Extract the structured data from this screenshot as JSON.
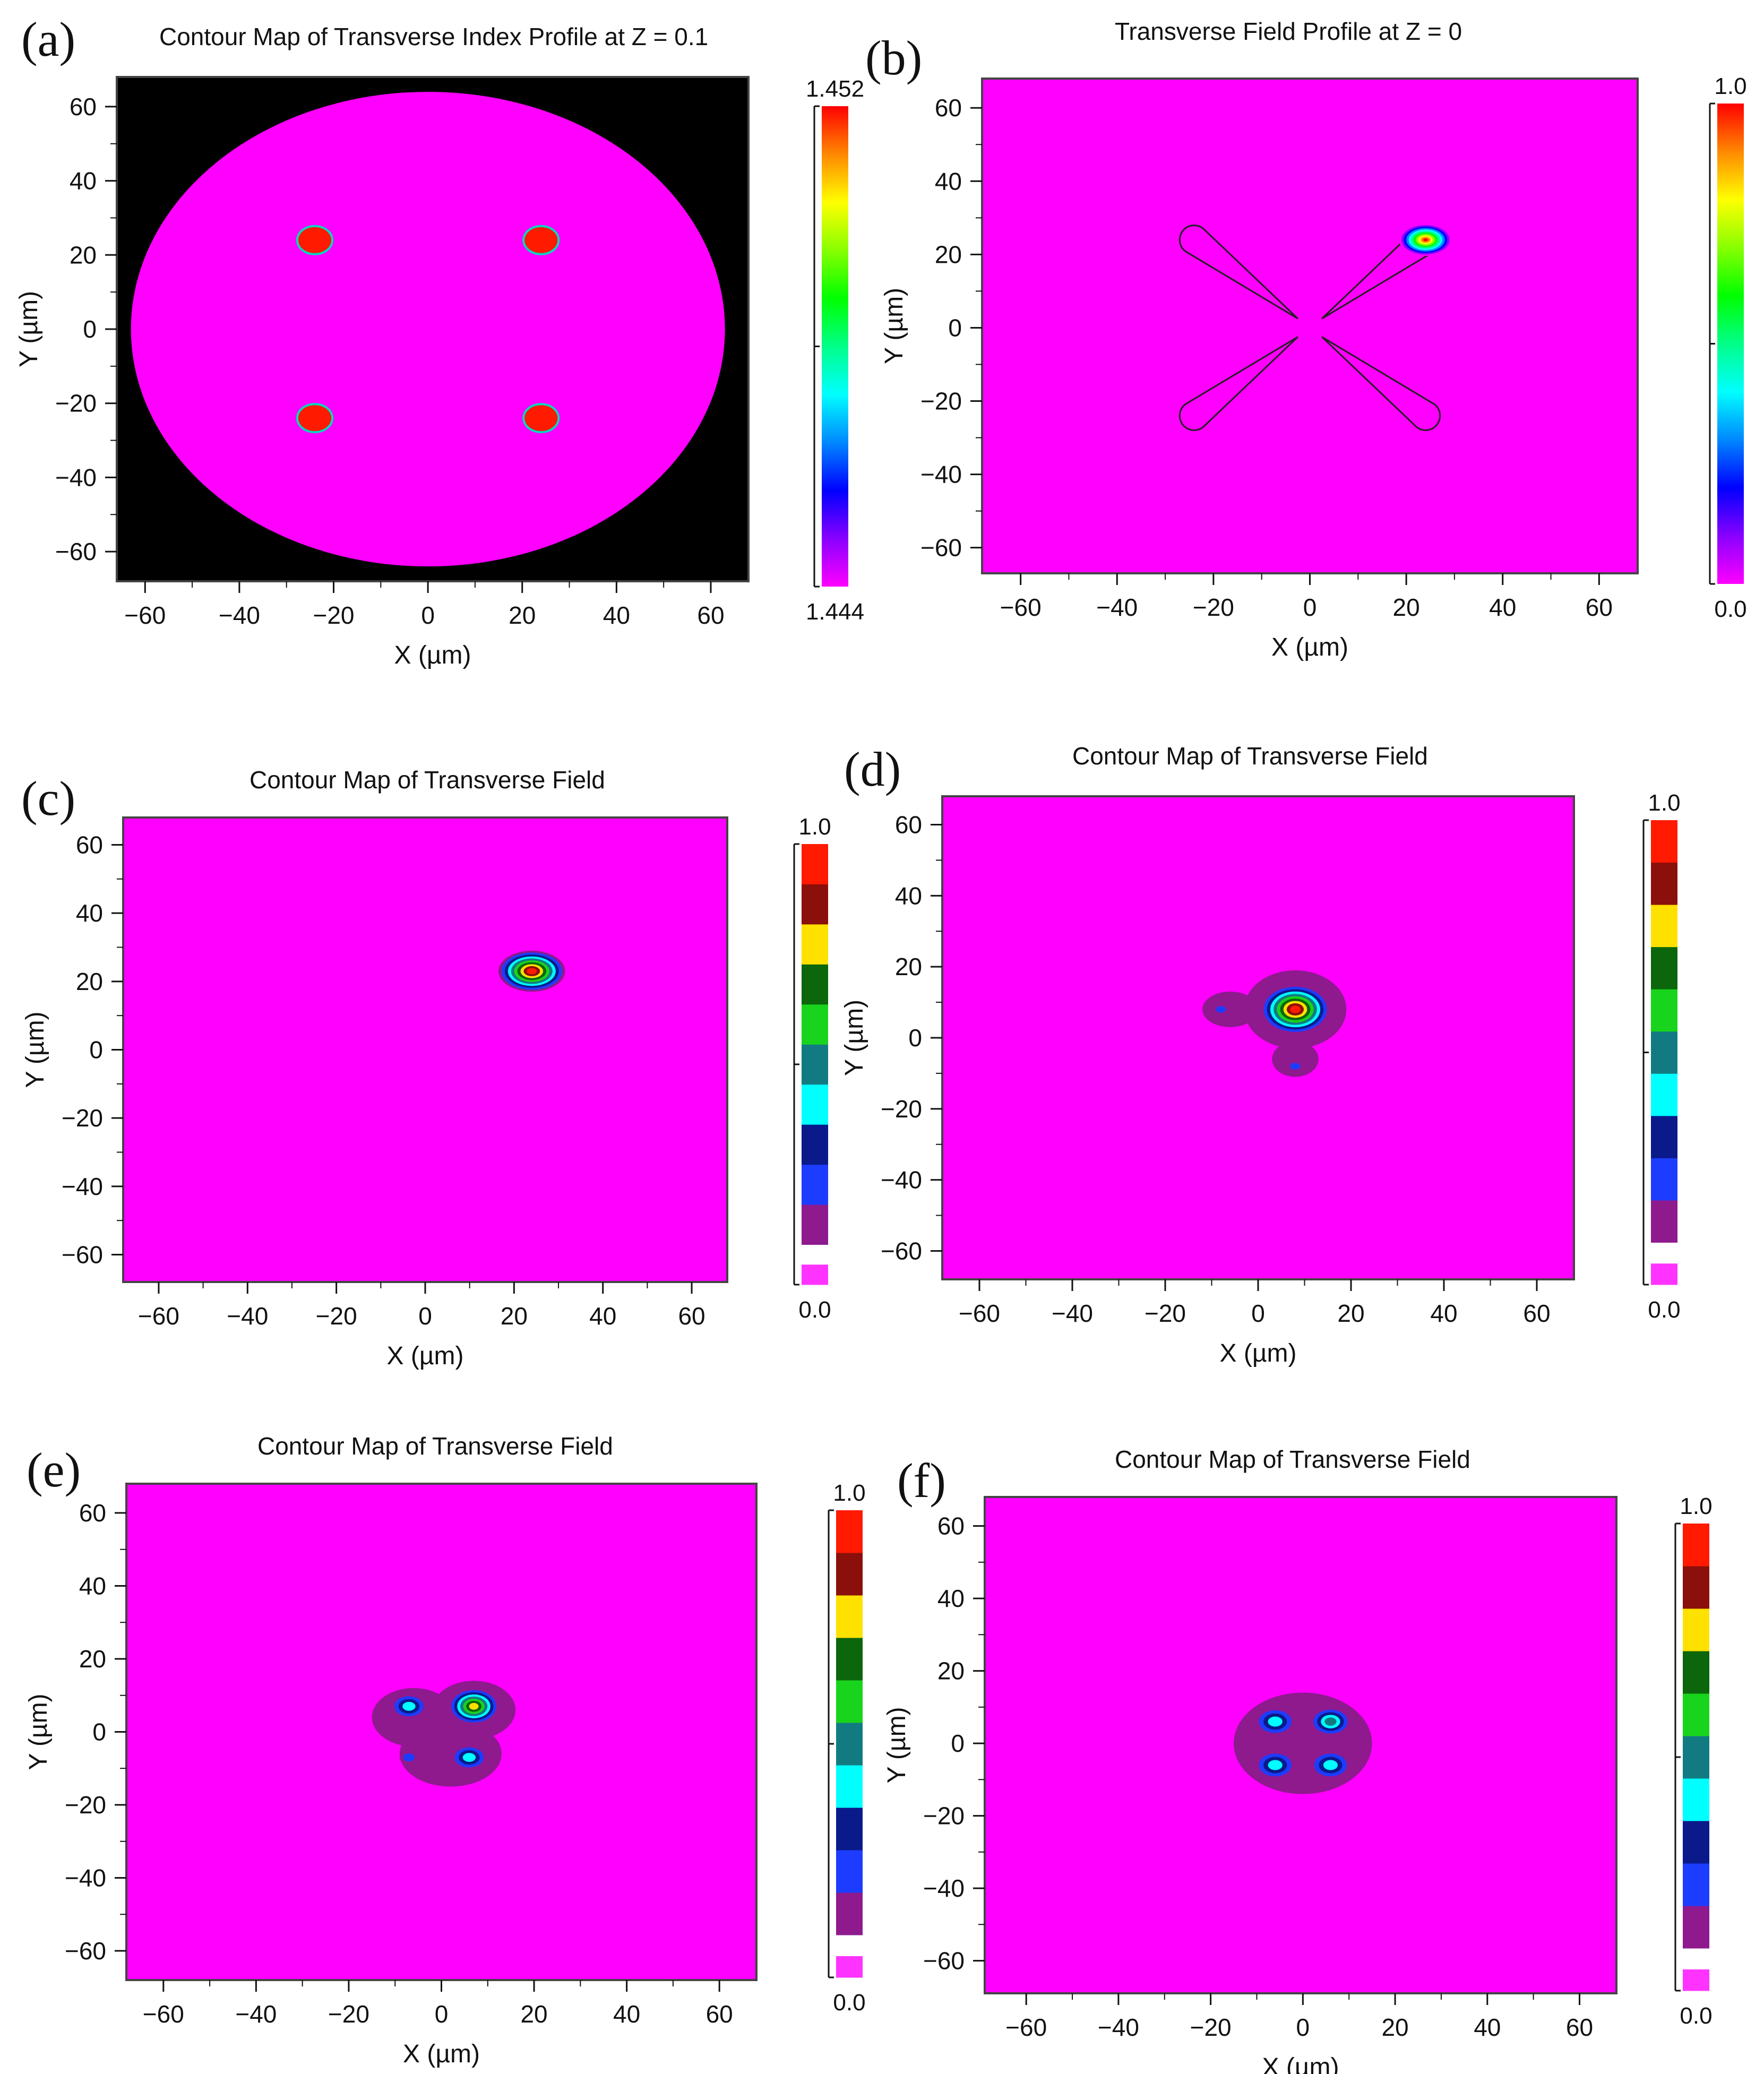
{
  "colors": {
    "background": "#ff00ff",
    "cladding_outside": "#000000",
    "core": "#ff1a00",
    "frame": "#444444",
    "contour_outline": "#222222"
  },
  "continuous_scale": [
    "#ff00ff",
    "#8800ff",
    "#0000ff",
    "#0088ff",
    "#00ffff",
    "#00ff88",
    "#00ff00",
    "#88ff00",
    "#ffff00",
    "#ff8800",
    "#ff0000"
  ],
  "discrete_scale": [
    "#ff33ff",
    "#8e1a8e",
    "#1c3cff",
    "#0a1a8a",
    "#00ffff",
    "#127b82",
    "#19d41c",
    "#0c660c",
    "#ffe100",
    "#8b0f0a",
    "#ff1a00"
  ],
  "chart_data": [
    {
      "id": "a",
      "panel_label": "(a)",
      "type": "heatmap",
      "title": "Contour Map of Transverse Index Profile at  Z = 0.1",
      "xlabel": "X (µm)",
      "ylabel": "Y (µm)",
      "xlim": [
        -66,
        68
      ],
      "ylim": [
        -68,
        68
      ],
      "xticks": [
        -60,
        -40,
        -20,
        0,
        20,
        40,
        60
      ],
      "yticks": [
        -60,
        -40,
        -20,
        0,
        20,
        40,
        60
      ],
      "colorbar": {
        "min_label": "1.444",
        "max_label": "1.452",
        "min": 1.444,
        "max": 1.452,
        "style": "continuous"
      },
      "cladding": {
        "center": [
          0,
          0
        ],
        "radius_x": 63,
        "radius_y": 64,
        "index": 1.444
      },
      "cores": [
        {
          "x": -24,
          "y": 24,
          "r": 3.5,
          "index": 1.452
        },
        {
          "x": 24,
          "y": 24,
          "r": 3.5,
          "index": 1.452
        },
        {
          "x": -24,
          "y": -24,
          "r": 3.5,
          "index": 1.452
        },
        {
          "x": 24,
          "y": -24,
          "r": 3.5,
          "index": 1.452
        }
      ]
    },
    {
      "id": "b",
      "panel_label": "(b)",
      "type": "heatmap",
      "title": "Transverse Field Profile at  Z = 0",
      "xlabel": "X (µm)",
      "ylabel": "Y (µm)",
      "xlim": [
        -68,
        68
      ],
      "ylim": [
        -67,
        68
      ],
      "xticks": [
        -60,
        -40,
        -20,
        0,
        20,
        40,
        60
      ],
      "yticks": [
        -60,
        -40,
        -20,
        0,
        20,
        40,
        60
      ],
      "colorbar": {
        "min_label": "0.0",
        "max_label": "1.0",
        "min": 0,
        "max": 1,
        "style": "continuous"
      },
      "field_spots": [
        {
          "x": 24,
          "y": 24,
          "w": 5,
          "h": 4,
          "amplitude": 1.0
        }
      ],
      "waveguide_outlines": [
        {
          "tip": [
            -2.5,
            2.5
          ],
          "end": [
            -24,
            24
          ],
          "end_radius": 3
        },
        {
          "tip": [
            2.5,
            2.5
          ],
          "end": [
            24,
            24
          ],
          "end_radius": 3
        },
        {
          "tip": [
            -2.5,
            -2.5
          ],
          "end": [
            -24,
            -24
          ],
          "end_radius": 3
        },
        {
          "tip": [
            2.5,
            -2.5
          ],
          "end": [
            24,
            -24
          ],
          "end_radius": 3
        }
      ]
    },
    {
      "id": "c",
      "panel_label": "(c)",
      "type": "heatmap",
      "title": "Contour Map of Transverse Field",
      "xlabel": "X (µm)",
      "ylabel": "Y (µm)",
      "xlim": [
        -68,
        68
      ],
      "ylim": [
        -68,
        68
      ],
      "xticks": [
        -60,
        -40,
        -20,
        0,
        20,
        40,
        60
      ],
      "yticks": [
        -60,
        -40,
        -20,
        0,
        20,
        40,
        60
      ],
      "colorbar": {
        "min_label": "0.0",
        "max_label": "1.0",
        "min": 0,
        "max": 1,
        "style": "discrete",
        "levels": 11
      },
      "spots": [
        {
          "x": 24,
          "y": 23,
          "rx": 7.5,
          "ry": 6,
          "peak": 10
        }
      ]
    },
    {
      "id": "d",
      "panel_label": "(d)",
      "type": "heatmap",
      "title": "Contour Map of Transverse Field",
      "xlabel": "X (µm)",
      "ylabel": "Y (µm)",
      "xlim": [
        -68,
        68
      ],
      "ylim": [
        -68,
        68
      ],
      "xticks": [
        -60,
        -40,
        -20,
        0,
        20,
        40,
        60
      ],
      "yticks": [
        -60,
        -40,
        -20,
        0,
        20,
        40,
        60
      ],
      "colorbar": {
        "min_label": "0.0",
        "max_label": "1.0",
        "min": 0,
        "max": 1,
        "style": "discrete",
        "levels": 11
      },
      "halo": [
        {
          "x": -6,
          "y": 8,
          "rx": 6,
          "ry": 5
        },
        {
          "x": 8,
          "y": 8,
          "rx": 11,
          "ry": 11
        },
        {
          "x": 8,
          "y": -6,
          "rx": 5,
          "ry": 5
        }
      ],
      "spots": [
        {
          "x": 8,
          "y": 8,
          "rx": 7.5,
          "ry": 7,
          "peak": 10
        },
        {
          "x": -8,
          "y": 8,
          "rx": 1.8,
          "ry": 1.5,
          "peak": 2
        },
        {
          "x": 8,
          "y": -8,
          "rx": 1.8,
          "ry": 1.5,
          "peak": 2
        }
      ]
    },
    {
      "id": "e",
      "panel_label": "(e)",
      "type": "heatmap",
      "title": "Contour Map of Transverse Field",
      "xlabel": "X (µm)",
      "ylabel": "Y (µm)",
      "xlim": [
        -68,
        68
      ],
      "ylim": [
        -68,
        68
      ],
      "xticks": [
        -60,
        -40,
        -20,
        0,
        20,
        40,
        60
      ],
      "yticks": [
        -60,
        -40,
        -20,
        0,
        20,
        40,
        60
      ],
      "colorbar": {
        "min_label": "0.0",
        "max_label": "1.0",
        "min": 0,
        "max": 1,
        "style": "discrete",
        "levels": 11
      },
      "halo": [
        {
          "x": -6,
          "y": 4,
          "rx": 9,
          "ry": 8
        },
        {
          "x": 7,
          "y": 6,
          "rx": 9,
          "ry": 8
        },
        {
          "x": 2,
          "y": -6,
          "rx": 11,
          "ry": 9
        }
      ],
      "spots": [
        {
          "x": 7,
          "y": 7,
          "rx": 5.5,
          "ry": 5,
          "peak": 8
        },
        {
          "x": -7,
          "y": 7,
          "rx": 4,
          "ry": 3.5,
          "peak": 4
        },
        {
          "x": 6,
          "y": -7,
          "rx": 4,
          "ry": 3.5,
          "peak": 4
        },
        {
          "x": -7,
          "y": -7,
          "rx": 2,
          "ry": 1.8,
          "peak": 2
        }
      ]
    },
    {
      "id": "f",
      "panel_label": "(f)",
      "type": "heatmap",
      "title": "Contour Map of Transverse Field",
      "xlabel": "X (µm)",
      "ylabel": "Y (µm)",
      "xlim": [
        -69,
        68
      ],
      "ylim": [
        -69,
        68
      ],
      "xticks": [
        -60,
        -40,
        -20,
        0,
        20,
        40,
        60
      ],
      "yticks": [
        -60,
        -40,
        -20,
        0,
        20,
        40,
        60
      ],
      "colorbar": {
        "min_label": "0.0",
        "max_label": "1.0",
        "min": 0,
        "max": 1,
        "style": "discrete",
        "levels": 11
      },
      "halo": [
        {
          "x": 0,
          "y": 0,
          "rx": 15,
          "ry": 14
        }
      ],
      "spots": [
        {
          "x": -6,
          "y": 6,
          "rx": 4.5,
          "ry": 4,
          "peak": 4
        },
        {
          "x": 6,
          "y": 6,
          "rx": 4.5,
          "ry": 4,
          "peak": 5
        },
        {
          "x": -6,
          "y": -6,
          "rx": 4.5,
          "ry": 4,
          "peak": 4
        },
        {
          "x": 6,
          "y": -6,
          "rx": 4.5,
          "ry": 4,
          "peak": 4
        }
      ]
    }
  ]
}
